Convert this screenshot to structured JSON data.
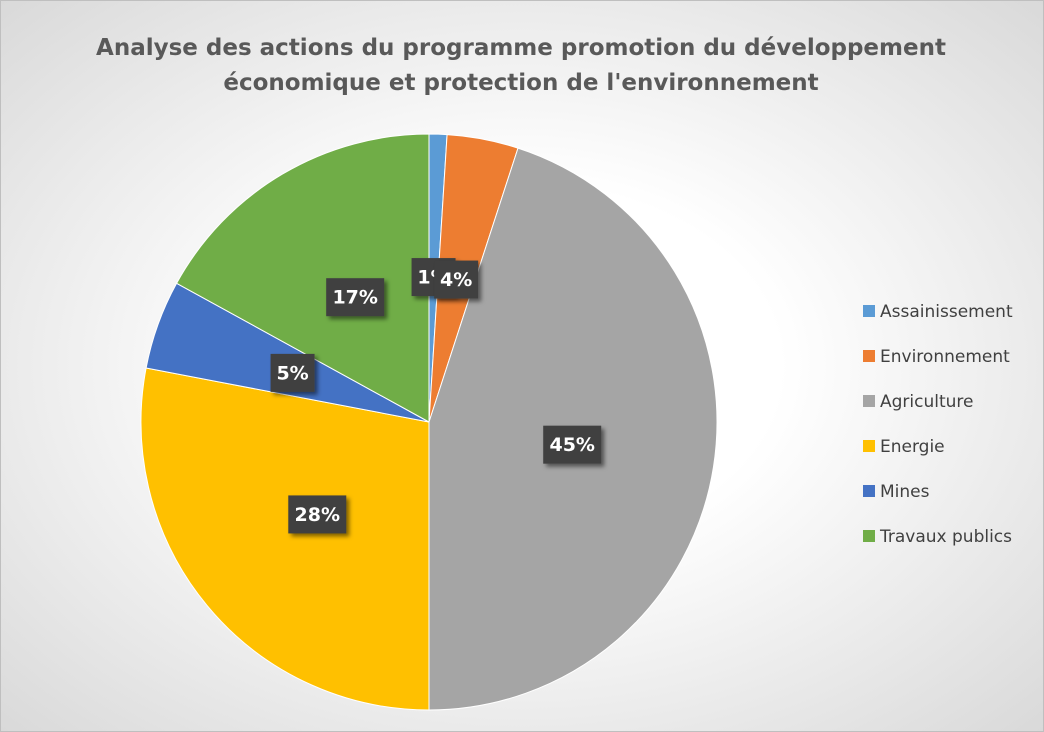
{
  "chart_data": {
    "type": "pie",
    "title": "Analyse des actions du programme promotion du développement économique et protection de l'environnement",
    "categories": [
      "Assainissement",
      "Environnement",
      "Agriculture",
      "Energie",
      "Mines",
      "Travaux publics"
    ],
    "values": [
      1,
      4,
      45,
      28,
      5,
      17
    ],
    "value_labels": [
      "1%",
      "4%",
      "45%",
      "28%",
      "5%",
      "17%"
    ],
    "colors": [
      "#5b9bd5",
      "#ed7d31",
      "#a5a5a5",
      "#ffc000",
      "#4472c4",
      "#70ad47"
    ],
    "legend": "right"
  }
}
